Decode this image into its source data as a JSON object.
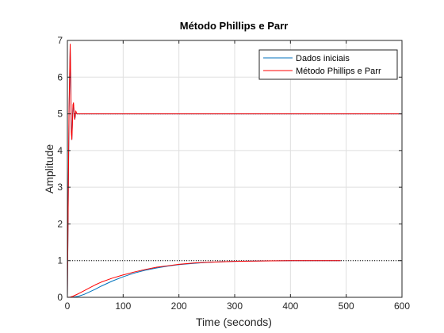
{
  "chart_data": {
    "type": "line",
    "title": "Método Phillips e Parr",
    "xlabel": "Time (seconds)",
    "ylabel": "Amplitude",
    "xlim": [
      0,
      600
    ],
    "ylim": [
      0,
      7
    ],
    "xticks": [
      0,
      100,
      200,
      300,
      400,
      500,
      600
    ],
    "yticks": [
      0,
      1,
      2,
      3,
      4,
      5,
      6,
      7
    ],
    "grid": true,
    "box": true,
    "legend_position": "top-right",
    "reference_lines": [
      {
        "y": 1,
        "style": "dotted",
        "color": "#000000"
      },
      {
        "y": 5,
        "style": "dotted",
        "color": "#000000"
      }
    ],
    "series": [
      {
        "name": "Dados iniciais",
        "color": "#0072bd",
        "segments": [
          {
            "x": [
              0,
              10,
              20,
              30,
              40,
              50,
              60,
              80,
              100,
              120,
              140,
              160,
              180,
              200,
              230,
              260,
              300,
              350,
              400,
              450,
              490
            ],
            "y": [
              0,
              0.005,
              0.03,
              0.08,
              0.15,
              0.22,
              0.3,
              0.44,
              0.56,
              0.66,
              0.74,
              0.8,
              0.85,
              0.89,
              0.93,
              0.96,
              0.98,
              0.99,
              1.0,
              1.0,
              1.0
            ]
          },
          {
            "x": [
              0,
              3,
              5,
              6,
              7,
              8,
              9,
              10,
              11,
              12,
              13,
              14,
              15,
              17,
              20,
              30,
              100,
              200,
              300,
              400,
              500,
              600
            ],
            "y": [
              0,
              5.0,
              6.8,
              6.0,
              4.6,
              4.3,
              4.8,
              5.2,
              5.25,
              5.0,
              4.85,
              4.9,
              5.05,
              5.0,
              5.0,
              5.0,
              5.0,
              5.0,
              5.0,
              5.0,
              5.0,
              5.0
            ]
          }
        ]
      },
      {
        "name": "Método Phillips e Parr",
        "color": "#ff0000",
        "segments": [
          {
            "x": [
              0,
              5,
              10,
              20,
              30,
              40,
              50,
              60,
              80,
              100,
              120,
              140,
              160,
              180,
              200,
              230,
              260,
              300,
              350,
              400,
              450,
              490
            ],
            "y": [
              0,
              0.005,
              0.03,
              0.1,
              0.18,
              0.26,
              0.34,
              0.41,
              0.52,
              0.61,
              0.69,
              0.76,
              0.82,
              0.86,
              0.9,
              0.94,
              0.96,
              0.98,
              0.99,
              1.0,
              1.0,
              1.0
            ]
          },
          {
            "x": [
              0,
              3,
              5,
              6,
              7,
              8,
              9,
              10,
              11,
              12,
              13,
              14,
              15,
              17,
              20,
              30,
              100,
              200,
              300,
              400,
              500,
              600
            ],
            "y": [
              0,
              5.2,
              6.9,
              5.8,
              4.5,
              4.3,
              4.7,
              5.25,
              5.3,
              5.05,
              4.85,
              4.95,
              5.08,
              5.0,
              5.0,
              5.0,
              5.0,
              5.0,
              5.0,
              5.0,
              5.0,
              5.0
            ]
          }
        ]
      }
    ]
  }
}
